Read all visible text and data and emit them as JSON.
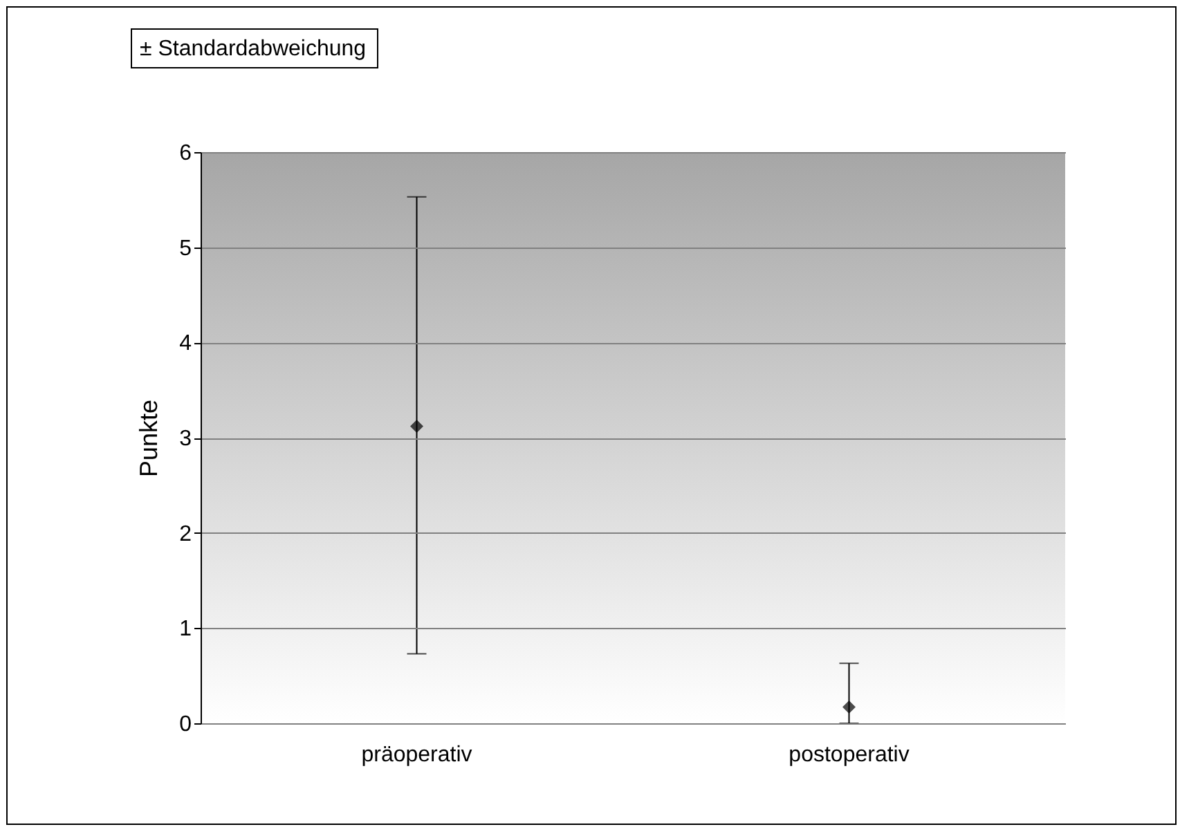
{
  "chart_data": {
    "type": "scatter",
    "categories": [
      "präoperativ",
      "postoperativ"
    ],
    "values": [
      3.12,
      0.17
    ],
    "errors": [
      [
        0.73,
        5.53
      ],
      [
        0,
        0.63
      ]
    ],
    "color": "#000000",
    "marker": "diamond",
    "ylabel": "Punkte",
    "ylim": [
      0,
      6
    ],
    "yticks": [
      0,
      1,
      2,
      3,
      4,
      5,
      6
    ],
    "grid": "y",
    "annotations": [
      "± Standardabweichung"
    ]
  }
}
